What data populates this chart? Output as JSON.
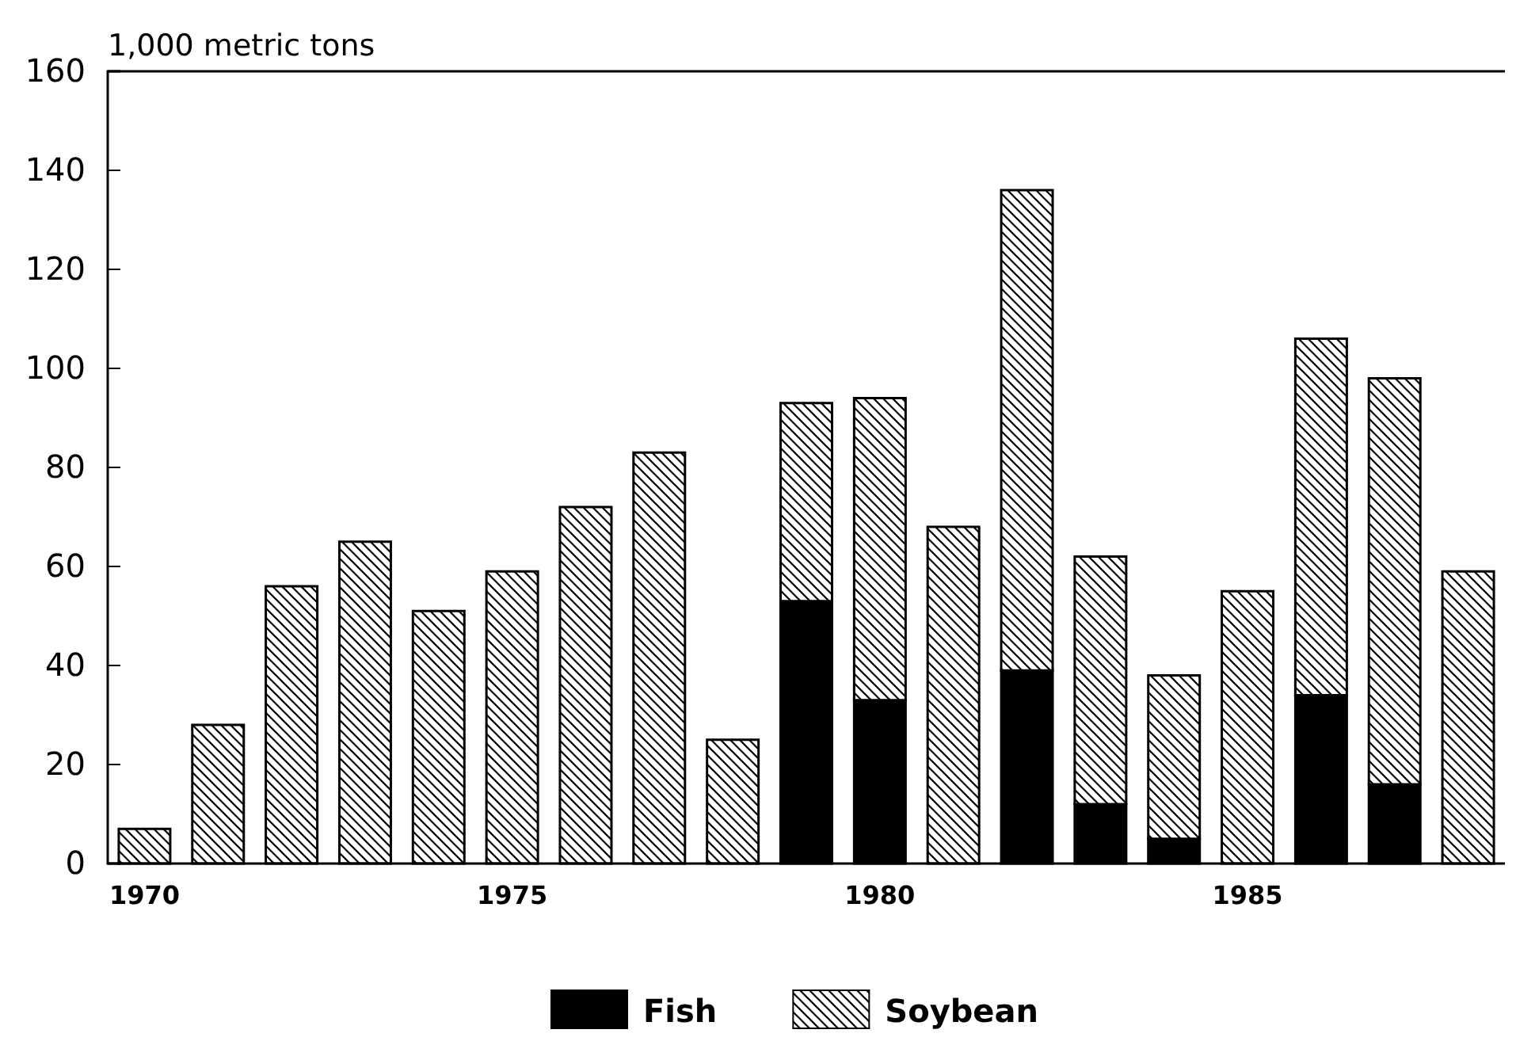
{
  "chart_data": {
    "type": "bar",
    "stacked": true,
    "ylabel": "1,000 metric tons",
    "categories": [
      "1970",
      null,
      null,
      null,
      null,
      "1975",
      null,
      null,
      null,
      null,
      "1980",
      null,
      null,
      null,
      null,
      "1985",
      null,
      null,
      null
    ],
    "series": [
      {
        "name": "Fish",
        "color": "#000000",
        "values": [
          0,
          0,
          0,
          0,
          0,
          0,
          0,
          0,
          0,
          53,
          33,
          0,
          39,
          12,
          5,
          0,
          34,
          16,
          0
        ]
      },
      {
        "name": "Soybean",
        "color": "#000000",
        "values": [
          7,
          28,
          56,
          65,
          51,
          59,
          72,
          83,
          25,
          40,
          61,
          68,
          97,
          50,
          33,
          55,
          72,
          82,
          59
        ]
      }
    ],
    "ylim": [
      0,
      160
    ],
    "yticks": [
      0,
      20,
      40,
      60,
      80,
      100,
      120,
      140,
      160
    ],
    "grid": false,
    "legend": "bottom"
  }
}
